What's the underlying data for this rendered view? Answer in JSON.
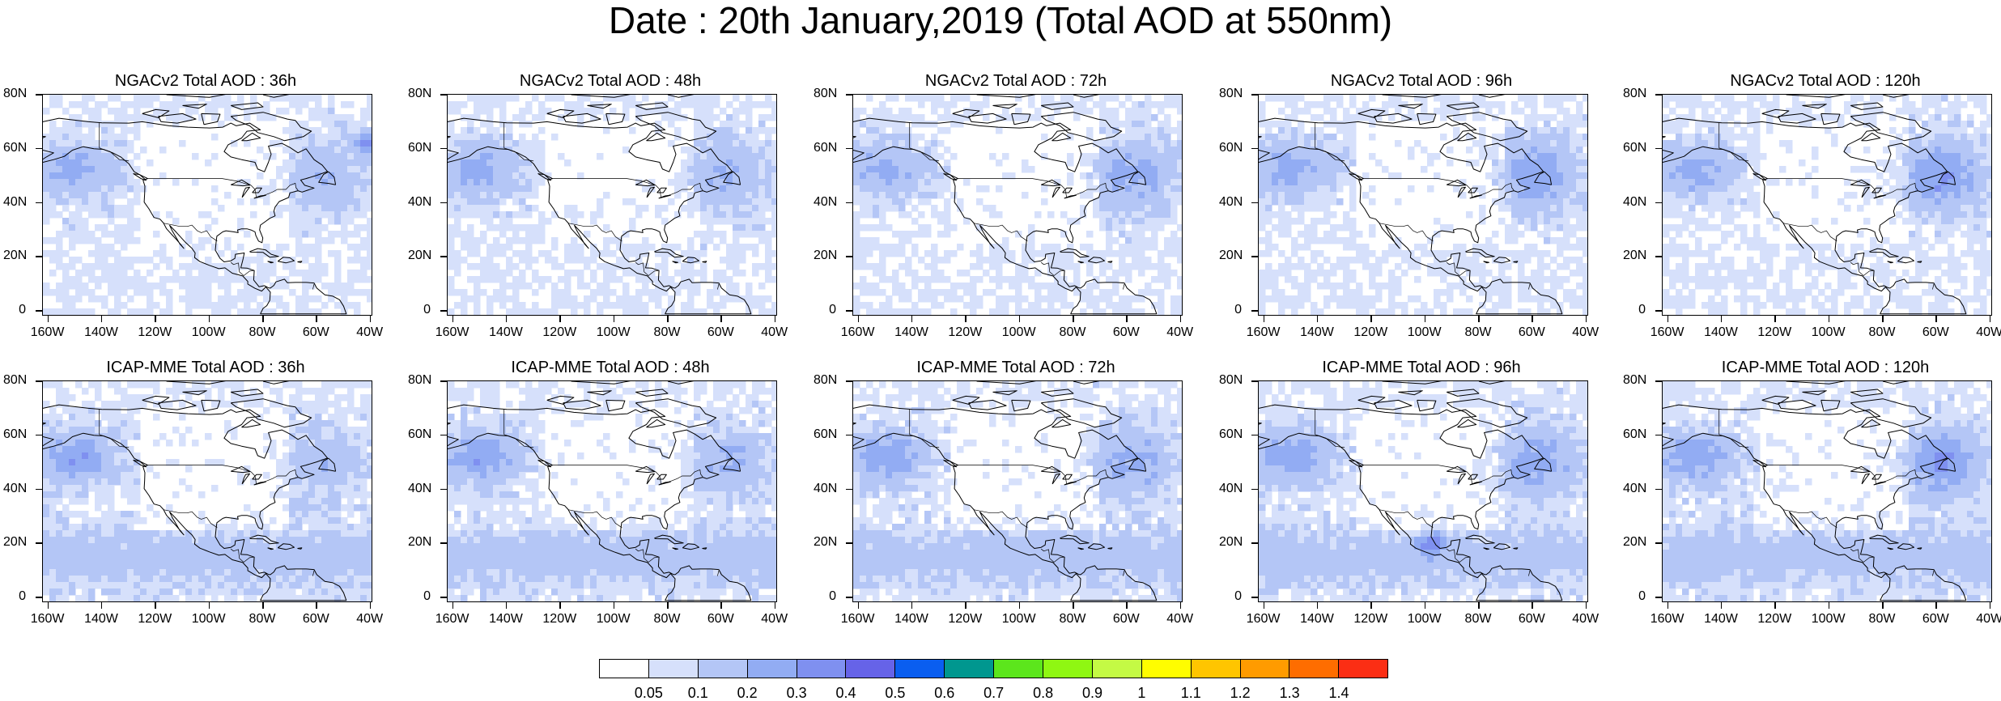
{
  "title": "Date : 20th January,2019 (Total AOD at 550nm)",
  "panels": [
    {
      "title": "NGACv2 Total AOD : 36h"
    },
    {
      "title": "NGACv2 Total AOD : 48h"
    },
    {
      "title": "NGACv2 Total AOD : 72h"
    },
    {
      "title": "NGACv2 Total AOD : 96h"
    },
    {
      "title": "NGACv2 Total AOD : 120h"
    },
    {
      "title": "ICAP-MME Total AOD : 36h"
    },
    {
      "title": "ICAP-MME Total AOD : 48h"
    },
    {
      "title": "ICAP-MME Total AOD : 72h"
    },
    {
      "title": "ICAP-MME Total AOD : 96h"
    },
    {
      "title": "ICAP-MME Total AOD : 120h"
    }
  ],
  "lat_ticks": [
    "80N",
    "60N",
    "40N",
    "20N",
    "0"
  ],
  "lon_ticks": [
    "160W",
    "140W",
    "120W",
    "100W",
    "80W",
    "60W",
    "40W"
  ],
  "colorbar": {
    "labels": [
      "0.05",
      "0.1",
      "0.2",
      "0.3",
      "0.4",
      "0.5",
      "0.6",
      "0.7",
      "0.8",
      "0.9",
      "1",
      "1.1",
      "1.2",
      "1.3",
      "1.4"
    ],
    "colors": [
      "#ffffff",
      "#d6e0fb",
      "#b4c6f6",
      "#92acf3",
      "#7f90f0",
      "#6663e8",
      "#0a5ef0",
      "#00978f",
      "#5ce61c",
      "#8ff712",
      "#c4fa44",
      "#fffd00",
      "#ffc500",
      "#ff9b00",
      "#fe6d00",
      "#fb2e14"
    ]
  }
}
